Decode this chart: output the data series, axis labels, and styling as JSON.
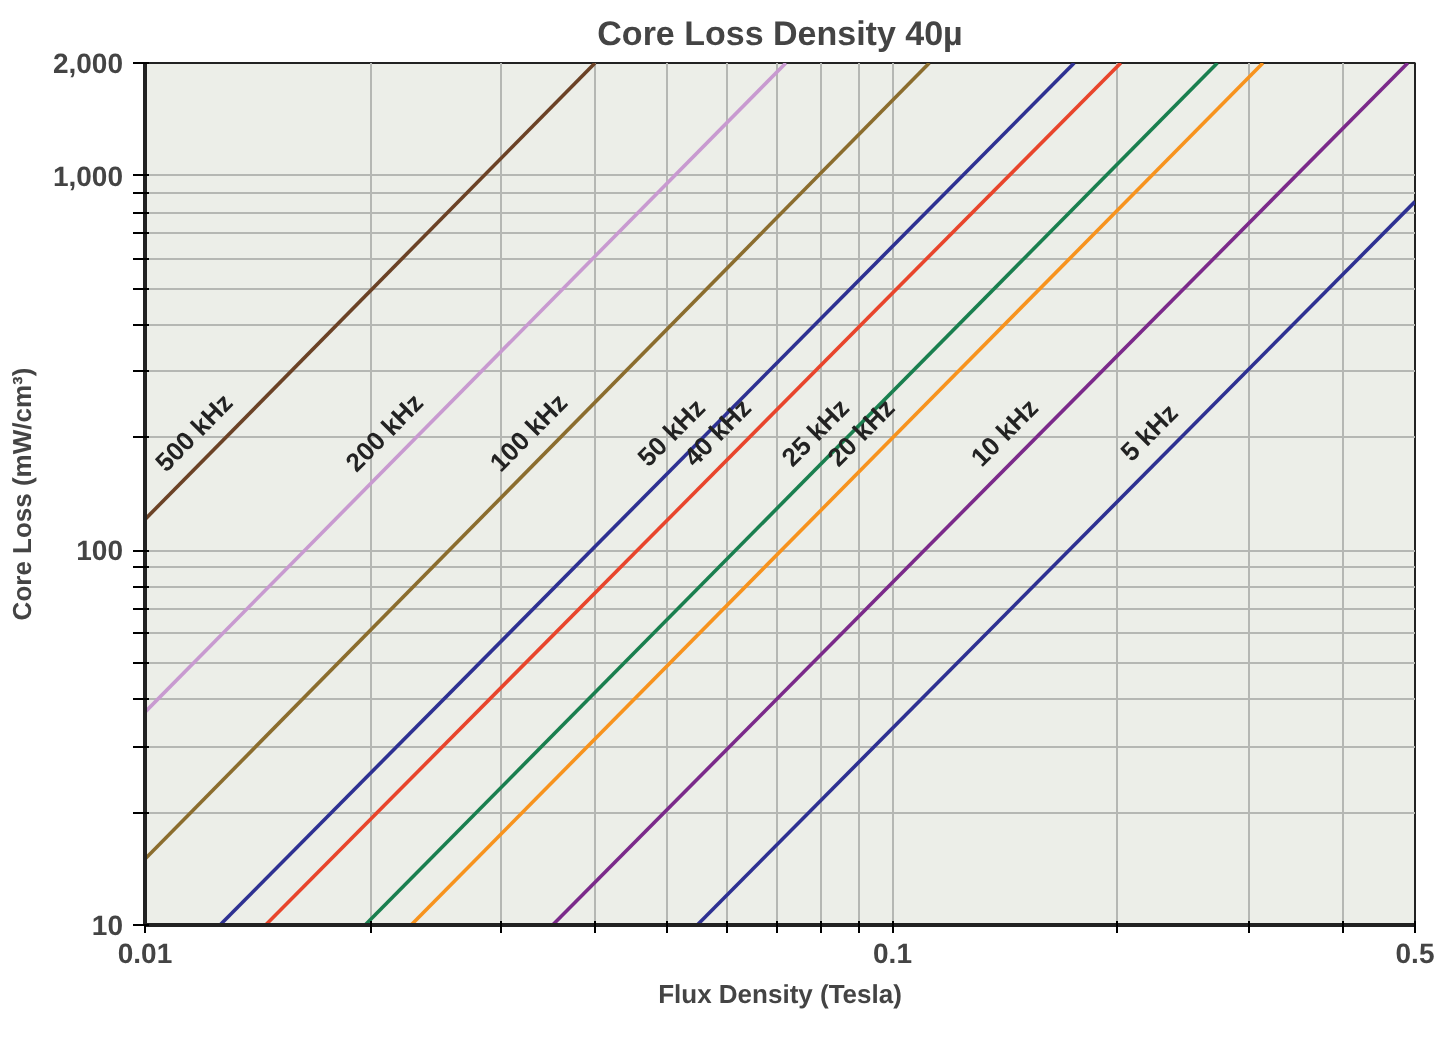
{
  "chart_data": {
    "type": "line",
    "title": "Core Loss Density 40µ",
    "xlabel": "Flux Density (Tesla)",
    "ylabel": "Core Loss (mW/cm³)",
    "log": "xy",
    "grid": true,
    "xlim": [
      0.01,
      0.5
    ],
    "ylim": [
      10,
      2000
    ],
    "xticks": [
      0.01,
      {
        "value": 0.02,
        "label": null
      },
      {
        "value": 0.03,
        "label": null
      },
      {
        "value": 0.04,
        "label": null
      },
      {
        "value": 0.05,
        "label": null
      },
      {
        "value": 0.06,
        "label": null
      },
      {
        "value": 0.07,
        "label": null
      },
      {
        "value": 0.08,
        "label": null
      },
      {
        "value": 0.09,
        "label": null
      },
      0.1,
      {
        "value": 0.2,
        "label": null
      },
      {
        "value": 0.3,
        "label": null
      },
      {
        "value": 0.4,
        "label": null
      },
      0.5
    ],
    "yticks": [
      10,
      {
        "value": 20,
        "label": null
      },
      {
        "value": 30,
        "label": null
      },
      {
        "value": 40,
        "label": null
      },
      {
        "value": 50,
        "label": null
      },
      {
        "value": 60,
        "label": null
      },
      {
        "value": 70,
        "label": null
      },
      {
        "value": 80,
        "label": null
      },
      {
        "value": 90,
        "label": null
      },
      100,
      {
        "value": 200,
        "label": null
      },
      {
        "value": 300,
        "label": null
      },
      {
        "value": 400,
        "label": null
      },
      {
        "value": 500,
        "label": null
      },
      {
        "value": 600,
        "label": null
      },
      {
        "value": 700,
        "label": null
      },
      {
        "value": 800,
        "label": null
      },
      {
        "value": 900,
        "label": null
      },
      {
        "value": 1000,
        "label": "1,000"
      },
      {
        "value": 2000,
        "label": "2,000"
      }
    ],
    "series": [
      {
        "name": "500 kHz",
        "color": "#6b4226",
        "x": [
          0.01,
          0.04
        ],
        "values": [
          121,
          2000
        ]
      },
      {
        "name": "200 kHz",
        "color": "#c89ad0",
        "x": [
          0.01,
          0.072
        ],
        "values": [
          37,
          2000
        ]
      },
      {
        "name": "100 kHz",
        "color": "#8b6d2e",
        "x": [
          0.01,
          0.112
        ],
        "values": [
          15,
          2000
        ]
      },
      {
        "name": "50 kHz",
        "color": "#2e3192",
        "x": [
          0.0126,
          0.175
        ],
        "values": [
          10,
          2000
        ]
      },
      {
        "name": "40 kHz",
        "color": "#e8452c",
        "x": [
          0.0145,
          0.202
        ],
        "values": [
          10,
          2000
        ]
      },
      {
        "name": "25 kHz",
        "color": "#1a7f4f",
        "x": [
          0.0197,
          0.272
        ],
        "values": [
          10,
          2000
        ]
      },
      {
        "name": "20 kHz",
        "color": "#f7931e",
        "x": [
          0.0227,
          0.313
        ],
        "values": [
          10,
          2000
        ]
      },
      {
        "name": "10 kHz",
        "color": "#7b2a8a",
        "x": [
          0.0351,
          0.489
        ],
        "values": [
          10,
          2000
        ]
      },
      {
        "name": "5 kHz",
        "color": "#2e3192",
        "x": [
          0.0548,
          0.5
        ],
        "values": [
          10,
          853
        ]
      }
    ]
  }
}
